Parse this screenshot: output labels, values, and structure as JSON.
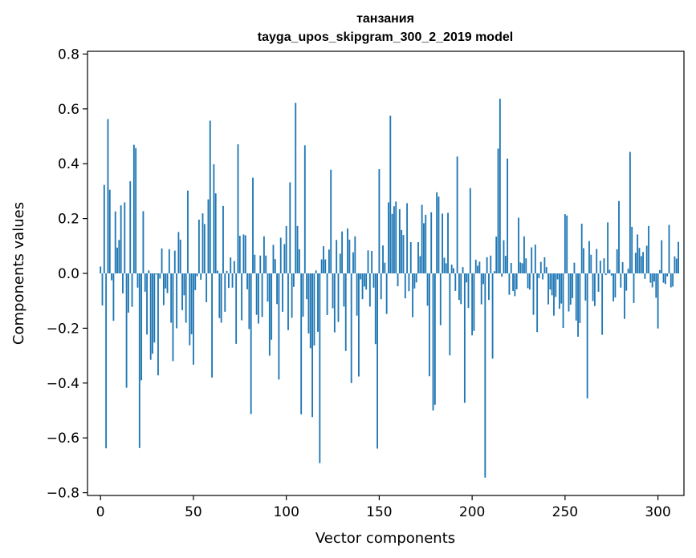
{
  "chart_data": {
    "type": "bar",
    "title": "танзания",
    "subtitle": "tayga_upos_skipgram_300_2_2019 model",
    "xlabel": "Vector components",
    "ylabel": "Components values",
    "xlim": [
      -7,
      314
    ],
    "ylim": [
      -0.81,
      0.81
    ],
    "xticks": [
      0,
      50,
      100,
      150,
      200,
      250,
      300
    ],
    "xtick_labels": [
      "0",
      "50",
      "100",
      "150",
      "200",
      "250",
      "300"
    ],
    "yticks": [
      -0.8,
      -0.6,
      -0.4,
      -0.2,
      0.0,
      0.2,
      0.4,
      0.6,
      0.8
    ],
    "ytick_labels": [
      "−0.8",
      "−0.6",
      "−0.4",
      "−0.2",
      "0.0",
      "0.2",
      "0.4",
      "0.6",
      "0.8"
    ],
    "bar_color": "#1f77b4",
    "grid": false,
    "values": [
      0.025,
      -0.117,
      0.323,
      -0.638,
      0.563,
      0.305,
      -0.025,
      -0.173,
      0.226,
      0.094,
      0.122,
      0.248,
      -0.073,
      0.259,
      -0.417,
      -0.143,
      0.336,
      -0.122,
      0.469,
      0.457,
      -0.052,
      -0.637,
      -0.39,
      0.227,
      -0.067,
      -0.223,
      0.011,
      -0.315,
      -0.293,
      -0.252,
      -0.004,
      -0.372,
      -0.019,
      0.091,
      -0.116,
      -0.055,
      -0.072,
      0.088,
      -0.18,
      -0.32,
      0.083,
      -0.2,
      0.151,
      0.123,
      -0.134,
      -0.08,
      -0.18,
      0.302,
      -0.262,
      -0.222,
      -0.333,
      -0.061,
      -0.01,
      0.196,
      -0.023,
      0.219,
      0.18,
      -0.105,
      0.27,
      0.557,
      -0.38,
      0.398,
      0.292,
      0.01,
      -0.163,
      -0.18,
      0.246,
      -0.14,
      0.009,
      -0.053,
      0.058,
      -0.052,
      0.045,
      -0.257,
      0.471,
      0.137,
      -0.171,
      0.142,
      0.139,
      -0.058,
      -0.203,
      -0.513,
      0.349,
      0.068,
      -0.151,
      -0.183,
      0.065,
      -0.159,
      0.135,
      0.065,
      -0.103,
      -0.3,
      -0.242,
      0.104,
      0.052,
      -0.112,
      -0.387,
      0.13,
      -0.14,
      0.107,
      0.173,
      -0.207,
      0.332,
      -0.162,
      -0.049,
      0.622,
      0.173,
      0.088,
      -0.514,
      -0.158,
      0.467,
      -0.094,
      -0.219,
      -0.273,
      -0.524,
      -0.263,
      0.011,
      -0.213,
      -0.692,
      0.051,
      0.099,
      0.051,
      -0.152,
      0.087,
      0.378,
      -0.127,
      -0.215,
      0.122,
      -0.177,
      0.072,
      0.153,
      -0.121,
      -0.283,
      0.164,
      0.123,
      -0.4,
      0.077,
      0.135,
      -0.154,
      -0.376,
      -0.022,
      -0.094,
      -0.048,
      -0.059,
      0.084,
      -0.121,
      0.082,
      -0.052,
      -0.258,
      -0.639,
      0.38,
      -0.094,
      0.102,
      0.039,
      -0.148,
      0.259,
      0.575,
      0.217,
      0.245,
      0.262,
      -0.047,
      0.234,
      0.158,
      0.14,
      -0.091,
      0.256,
      -0.065,
      0.114,
      -0.16,
      -0.055,
      -0.033,
      0.114,
      0.063,
      0.25,
      0.183,
      0.214,
      -0.118,
      -0.375,
      0.223,
      -0.5,
      -0.479,
      0.296,
      0.28,
      -0.189,
      0.218,
      0.057,
      0.037,
      0.221,
      -0.299,
      0.032,
      0.019,
      -0.064,
      0.426,
      -0.097,
      -0.112,
      0.023,
      -0.472,
      -0.033,
      -0.126,
      0.311,
      -0.226,
      -0.21,
      0.05,
      0.028,
      0.043,
      -0.113,
      -0.039,
      -0.745,
      0.059,
      -0.097,
      0.065,
      -0.311,
      0.008,
      0.134,
      0.455,
      0.637,
      -0.012,
      0.121,
      0.064,
      0.419,
      -0.078,
      0.038,
      -0.064,
      -0.083,
      -0.058,
      0.203,
      0.04,
      0.037,
      0.135,
      0.055,
      -0.054,
      -0.059,
      0.095,
      -0.151,
      0.105,
      -0.214,
      -0.017,
      0.042,
      -0.022,
      0.059,
      0.023,
      -0.113,
      -0.059,
      -0.08,
      -0.154,
      -0.086,
      -0.022,
      -0.129,
      -0.11,
      -0.199,
      0.216,
      0.211,
      -0.139,
      -0.114,
      -0.09,
      0.039,
      -0.172,
      -0.231,
      -0.181,
      0.181,
      0.092,
      -0.099,
      -0.456,
      0.118,
      0.068,
      -0.101,
      -0.119,
      0.089,
      -0.067,
      0.046,
      -0.224,
      0.055,
      -0.006,
      0.186,
      0.013,
      -0.008,
      -0.102,
      -0.088,
      0.088,
      0.264,
      -0.052,
      0.041,
      -0.166,
      -0.063,
      0.017,
      0.443,
      0.17,
      -0.108,
      0.075,
      0.142,
      0.093,
      0.063,
      0.078,
      -0.02,
      0.101,
      0.173,
      -0.034,
      -0.051,
      -0.03,
      -0.089,
      -0.201,
      0.012,
      0.121,
      -0.034,
      -0.039,
      -0.011,
      0.177,
      -0.051,
      -0.048,
      0.062,
      0.054,
      0.115
    ]
  }
}
